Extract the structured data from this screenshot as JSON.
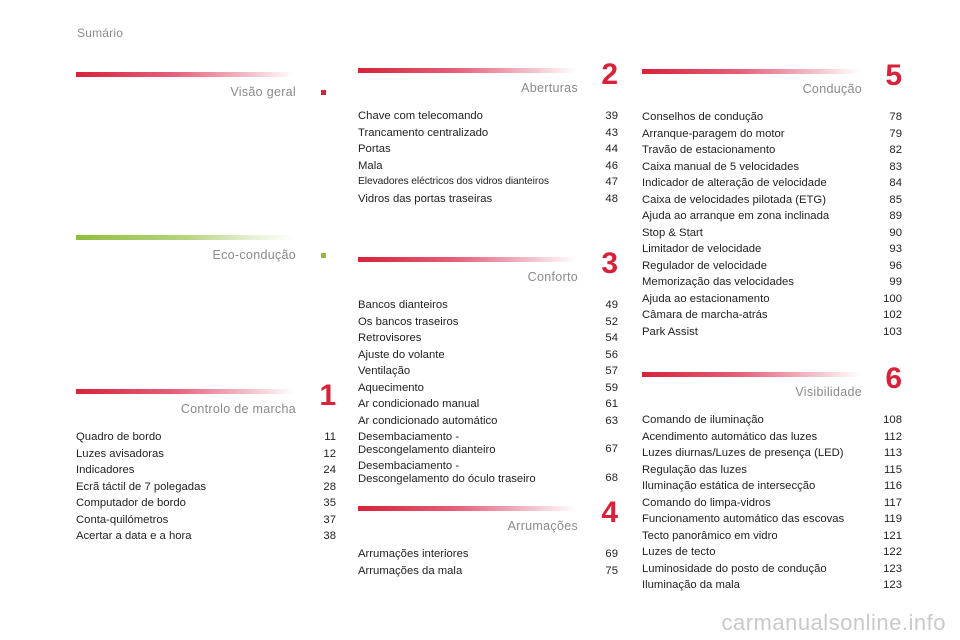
{
  "page_title": "Sumário",
  "sections": {
    "visao": {
      "title": "Visão geral",
      "number": "",
      "items": []
    },
    "eco": {
      "title": "Eco-condução",
      "number": "",
      "items": []
    },
    "controlo": {
      "title": "Controlo de marcha",
      "number": "1",
      "items": [
        {
          "label": "Quadro de bordo",
          "page": "11"
        },
        {
          "label": "Luzes avisadoras",
          "page": "12"
        },
        {
          "label": "Indicadores",
          "page": "24"
        },
        {
          "label": "Ecrã táctil de 7 polegadas",
          "page": "28"
        },
        {
          "label": "Computador de bordo",
          "page": "35"
        },
        {
          "label": "Conta-quilómetros",
          "page": "37"
        },
        {
          "label": "Acertar a data e a hora",
          "page": "38"
        }
      ]
    },
    "aberturas": {
      "title": "Aberturas",
      "number": "2",
      "items": [
        {
          "label": "Chave com telecomando",
          "page": "39"
        },
        {
          "label": "Trancamento centralizado",
          "page": "43"
        },
        {
          "label": "Portas",
          "page": "44"
        },
        {
          "label": "Mala",
          "page": "46"
        },
        {
          "label": "Elevadores eléctricos dos vidros dianteiros",
          "page": "47"
        },
        {
          "label": "Vidros das portas traseiras",
          "page": "48"
        }
      ]
    },
    "conforto": {
      "title": "Conforto",
      "number": "3",
      "items": [
        {
          "label": "Bancos dianteiros",
          "page": "49"
        },
        {
          "label": "Os bancos traseiros",
          "page": "52"
        },
        {
          "label": "Retrovisores",
          "page": "54"
        },
        {
          "label": "Ajuste do volante",
          "page": "56"
        },
        {
          "label": "Ventilação",
          "page": "57"
        },
        {
          "label": "Aquecimento",
          "page": "59"
        },
        {
          "label": "Ar condicionado manual",
          "page": "61"
        },
        {
          "label": "Ar condicionado automático",
          "page": "63"
        },
        {
          "label_1": "Desembaciamento -",
          "label_2": "Descongelamento dianteiro",
          "page": "67"
        },
        {
          "label_1": "Desembaciamento -",
          "label_2": "Descongelamento do óculo traseiro",
          "page": "68"
        }
      ]
    },
    "arrumacoes": {
      "title": "Arrumações",
      "number": "4",
      "items": [
        {
          "label": "Arrumações interiores",
          "page": "69"
        },
        {
          "label": "Arrumações da mala",
          "page": "75"
        }
      ]
    },
    "conducao": {
      "title": "Condução",
      "number": "5",
      "items": [
        {
          "label": "Conselhos de condução",
          "page": "78"
        },
        {
          "label": "Arranque-paragem do motor",
          "page": "79"
        },
        {
          "label": "Travão de estacionamento",
          "page": "82"
        },
        {
          "label": "Caixa manual de 5 velocidades",
          "page": "83"
        },
        {
          "label": "Indicador de alteração de velocidade",
          "page": "84"
        },
        {
          "label": "Caixa de velocidades pilotada (ETG)",
          "page": "85"
        },
        {
          "label": "Ajuda ao arranque em zona inclinada",
          "page": "89"
        },
        {
          "label": "Stop & Start",
          "page": "90"
        },
        {
          "label": "Limitador de velocidade",
          "page": "93"
        },
        {
          "label": "Regulador de velocidade",
          "page": "96"
        },
        {
          "label": "Memorização das velocidades",
          "page": "99"
        },
        {
          "label": "Ajuda ao estacionamento",
          "page": "100"
        },
        {
          "label": "Câmara de marcha-atrás",
          "page": "102"
        },
        {
          "label": "Park Assist",
          "page": "103"
        }
      ]
    },
    "visibilidade": {
      "title": "Visibilidade",
      "number": "6",
      "items": [
        {
          "label": "Comando de iluminação",
          "page": "108"
        },
        {
          "label": "Acendimento automático das luzes",
          "page": "112"
        },
        {
          "label": "Luzes diurnas/Luzes de presença (LED)",
          "page": "113"
        },
        {
          "label": "Regulação das luzes",
          "page": "115"
        },
        {
          "label": "Iluminação estática de intersecção",
          "page": "116"
        },
        {
          "label": "Comando do limpa-vidros",
          "page": "117"
        },
        {
          "label": "Funcionamento automático das escovas",
          "page": "119"
        },
        {
          "label": "Tecto panorâmico em vidro",
          "page": "121"
        },
        {
          "label": "Luzes de tecto",
          "page": "122"
        },
        {
          "label": "Luminosidade do posto de condução",
          "page": "123"
        },
        {
          "label": "Iluminação da mala",
          "page": "123"
        }
      ]
    }
  },
  "watermark": "carmanualsonline.info",
  "colors": {
    "accent_red": "#d8223a",
    "accent_green": "#8fbe3c",
    "heading_gray": "#8a8a8a"
  }
}
